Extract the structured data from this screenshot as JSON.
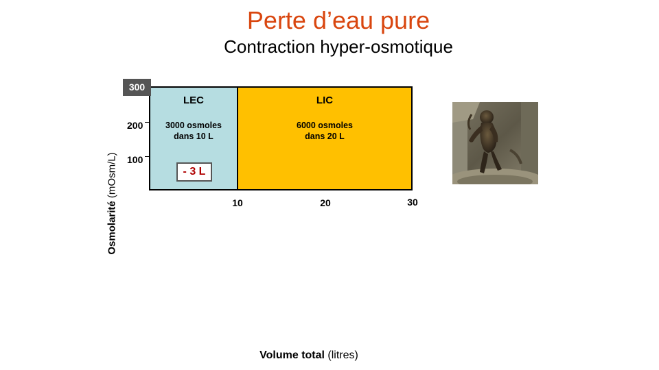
{
  "slide": {
    "title": "Perte d’eau pure",
    "subtitle": "Contraction hyper-osmotique"
  },
  "diagram": {
    "lec": {
      "title": "LEC",
      "line1": "3000 osmoles",
      "line2": "dans 10 L"
    },
    "lic": {
      "title": "LIC",
      "line1": "6000 osmoles",
      "line2": "dans 20 L"
    },
    "loss_label": "- 3 L",
    "y_badge": "300",
    "y_ticks": [
      "200",
      "100"
    ],
    "x_ticks": [
      "10",
      "20",
      "30"
    ],
    "y_axis": {
      "bold": "Osmolarité",
      "unit": "(mOsm/L)"
    },
    "x_axis": {
      "bold": "Volume total",
      "unit": "(litres)"
    },
    "colors": {
      "lec": "#b6dde1",
      "lic": "#ffc000",
      "title": "#d9460f",
      "loss": "#b00000"
    }
  },
  "image": {
    "subject": "statue-photo"
  }
}
